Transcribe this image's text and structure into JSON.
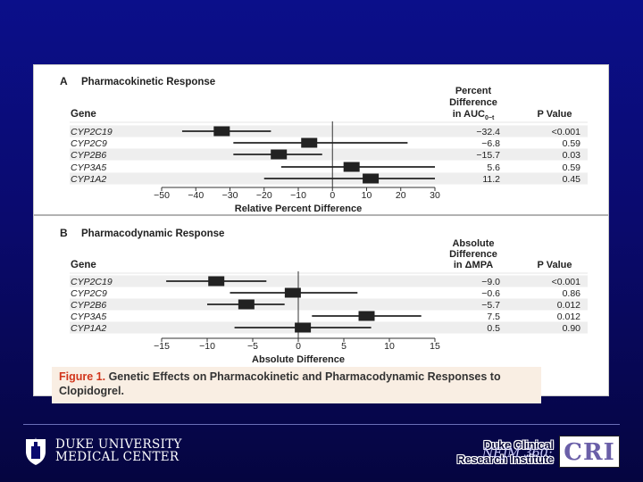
{
  "colors": {
    "accent": "#d1351b",
    "background": "#0b0f8a",
    "marker": "#222222"
  },
  "figure": {
    "caption_label": "Figure 1.",
    "caption_text": "Genetic Effects on Pharmacokinetic and Pharmacodynamic Responses to Clopidogrel."
  },
  "footer": {
    "duke_line1": "DUKE UNIVERSITY",
    "duke_line2": "MEDICAL CENTER",
    "dcri_line1": "Duke Clinical",
    "dcri_line2": "Research Institute",
    "citation": "NEJM 360;",
    "cri_logo": "CRI",
    "duke_logo_icon": "duke-chapel-icon"
  },
  "chart_data": [
    {
      "type": "forest",
      "panel_letter": "A",
      "title": "Pharmacokinetic Response",
      "gene_header": "Gene",
      "diff_header_lines": [
        "Percent",
        "Difference",
        "in AUC"
      ],
      "diff_header_sub": "0−t",
      "p_header": "P Value",
      "xlabel": "Relative Percent Difference",
      "xlim": [
        -50,
        30
      ],
      "ticks": [
        -50,
        -40,
        -30,
        -20,
        -10,
        0,
        10,
        20,
        30
      ],
      "tick_labels": [
        "−50",
        "−40",
        "−30",
        "−20",
        "−10",
        "0",
        "10",
        "20",
        "30"
      ],
      "rows": [
        {
          "gene": "CYP2C19",
          "estimate": -32.4,
          "ci": [
            -44,
            -18
          ],
          "diff_label": "−32.4",
          "p": "<0.001"
        },
        {
          "gene": "CYP2C9",
          "estimate": -6.8,
          "ci": [
            -29,
            22
          ],
          "diff_label": "−6.8",
          "p": "0.59"
        },
        {
          "gene": "CYP2B6",
          "estimate": -15.7,
          "ci": [
            -29,
            -3
          ],
          "diff_label": "−15.7",
          "p": "0.03"
        },
        {
          "gene": "CYP3A5",
          "estimate": 5.6,
          "ci": [
            -15,
            30
          ],
          "diff_label": "5.6",
          "p": "0.59"
        },
        {
          "gene": "CYP1A2",
          "estimate": 11.2,
          "ci": [
            -20,
            30
          ],
          "diff_label": "11.2",
          "p": "0.45"
        }
      ]
    },
    {
      "type": "forest",
      "panel_letter": "B",
      "title": "Pharmacodynamic Response",
      "gene_header": "Gene",
      "diff_header_lines": [
        "Absolute",
        "Difference",
        "in ΔMPA"
      ],
      "diff_header_sub": "",
      "p_header": "P Value",
      "xlabel": "Absolute Difference",
      "xlim": [
        -15,
        15
      ],
      "ticks": [
        -15,
        -10,
        -5,
        0,
        5,
        10,
        15
      ],
      "tick_labels": [
        "−15",
        "−10",
        "−5",
        "0",
        "5",
        "10",
        "15"
      ],
      "rows": [
        {
          "gene": "CYP2C19",
          "estimate": -9.0,
          "ci": [
            -14.5,
            -3.5
          ],
          "diff_label": "−9.0",
          "p": "<0.001"
        },
        {
          "gene": "CYP2C9",
          "estimate": -0.6,
          "ci": [
            -7.5,
            6.5
          ],
          "diff_label": "−0.6",
          "p": "0.86"
        },
        {
          "gene": "CYP2B6",
          "estimate": -5.7,
          "ci": [
            -10,
            -1.5
          ],
          "diff_label": "−5.7",
          "p": "0.012"
        },
        {
          "gene": "CYP3A5",
          "estimate": 7.5,
          "ci": [
            1.5,
            13.5
          ],
          "diff_label": "7.5",
          "p": "0.012"
        },
        {
          "gene": "CYP1A2",
          "estimate": 0.5,
          "ci": [
            -7,
            8
          ],
          "diff_label": "0.5",
          "p": "0.90"
        }
      ]
    }
  ]
}
